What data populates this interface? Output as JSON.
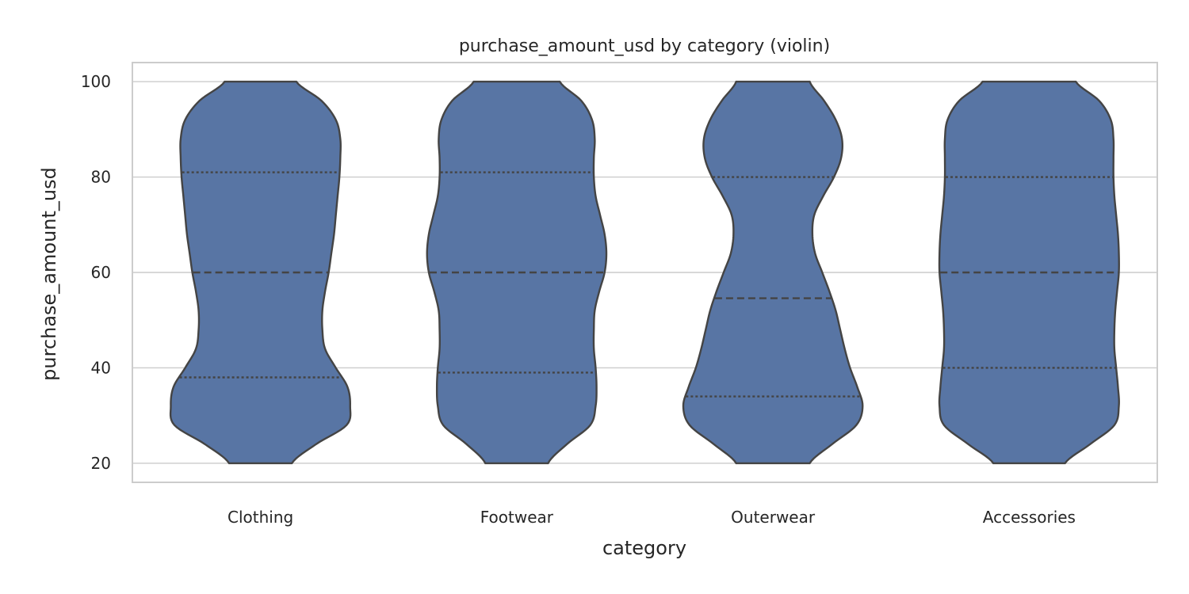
{
  "chart_data": {
    "type": "violin",
    "title": "purchase_amount_usd by category (violin)",
    "xlabel": "category",
    "ylabel": "purchase_amount_usd",
    "ylim": [
      16,
      104
    ],
    "yticks": [
      20,
      40,
      60,
      80,
      100
    ],
    "grid": "horizontal",
    "color": "#5875a4",
    "edge_color": "#444444",
    "categories": [
      "Clothing",
      "Footwear",
      "Outerwear",
      "Accessories"
    ],
    "series": [
      {
        "category": "Clothing",
        "min": 20,
        "max": 100,
        "q1": 38,
        "median": 60,
        "q3": 81,
        "density": [
          [
            20,
            0.35
          ],
          [
            24,
            0.62
          ],
          [
            28,
            0.96
          ],
          [
            32,
            1.0
          ],
          [
            36,
            0.97
          ],
          [
            40,
            0.84
          ],
          [
            44,
            0.72
          ],
          [
            48,
            0.69
          ],
          [
            52,
            0.69
          ],
          [
            56,
            0.72
          ],
          [
            60,
            0.76
          ],
          [
            64,
            0.79
          ],
          [
            68,
            0.82
          ],
          [
            72,
            0.84
          ],
          [
            76,
            0.86
          ],
          [
            80,
            0.88
          ],
          [
            84,
            0.89
          ],
          [
            88,
            0.89
          ],
          [
            92,
            0.84
          ],
          [
            96,
            0.68
          ],
          [
            100,
            0.4
          ]
        ]
      },
      {
        "category": "Footwear",
        "min": 20,
        "max": 100,
        "q1": 39,
        "median": 60,
        "q3": 81,
        "density": [
          [
            20,
            0.35
          ],
          [
            24,
            0.56
          ],
          [
            28,
            0.82
          ],
          [
            32,
            0.88
          ],
          [
            36,
            0.89
          ],
          [
            40,
            0.88
          ],
          [
            44,
            0.86
          ],
          [
            48,
            0.86
          ],
          [
            52,
            0.87
          ],
          [
            56,
            0.92
          ],
          [
            60,
            0.98
          ],
          [
            64,
            1.0
          ],
          [
            68,
            0.98
          ],
          [
            72,
            0.93
          ],
          [
            76,
            0.88
          ],
          [
            80,
            0.86
          ],
          [
            84,
            0.86
          ],
          [
            88,
            0.87
          ],
          [
            92,
            0.84
          ],
          [
            96,
            0.72
          ],
          [
            100,
            0.48
          ]
        ]
      },
      {
        "category": "Outerwear",
        "min": 20,
        "max": 100,
        "q1": 34,
        "median": 54.6,
        "q3": 80,
        "density": [
          [
            20,
            0.41
          ],
          [
            24,
            0.66
          ],
          [
            28,
            0.93
          ],
          [
            32,
            1.0
          ],
          [
            36,
            0.94
          ],
          [
            40,
            0.86
          ],
          [
            44,
            0.8
          ],
          [
            48,
            0.75
          ],
          [
            52,
            0.7
          ],
          [
            56,
            0.63
          ],
          [
            60,
            0.55
          ],
          [
            64,
            0.47
          ],
          [
            68,
            0.44
          ],
          [
            72,
            0.46
          ],
          [
            76,
            0.56
          ],
          [
            80,
            0.68
          ],
          [
            84,
            0.76
          ],
          [
            88,
            0.77
          ],
          [
            92,
            0.7
          ],
          [
            96,
            0.57
          ],
          [
            100,
            0.41
          ]
        ]
      },
      {
        "category": "Accessories",
        "min": 20,
        "max": 100,
        "q1": 40,
        "median": 60,
        "q3": 80,
        "density": [
          [
            20,
            0.4
          ],
          [
            24,
            0.68
          ],
          [
            28,
            0.95
          ],
          [
            32,
            1.0
          ],
          [
            36,
            0.99
          ],
          [
            40,
            0.97
          ],
          [
            44,
            0.95
          ],
          [
            48,
            0.95
          ],
          [
            52,
            0.96
          ],
          [
            56,
            0.98
          ],
          [
            60,
            1.0
          ],
          [
            64,
            1.0
          ],
          [
            68,
            0.99
          ],
          [
            72,
            0.97
          ],
          [
            76,
            0.95
          ],
          [
            80,
            0.94
          ],
          [
            84,
            0.94
          ],
          [
            88,
            0.94
          ],
          [
            92,
            0.91
          ],
          [
            96,
            0.78
          ],
          [
            100,
            0.52
          ]
        ]
      }
    ]
  }
}
